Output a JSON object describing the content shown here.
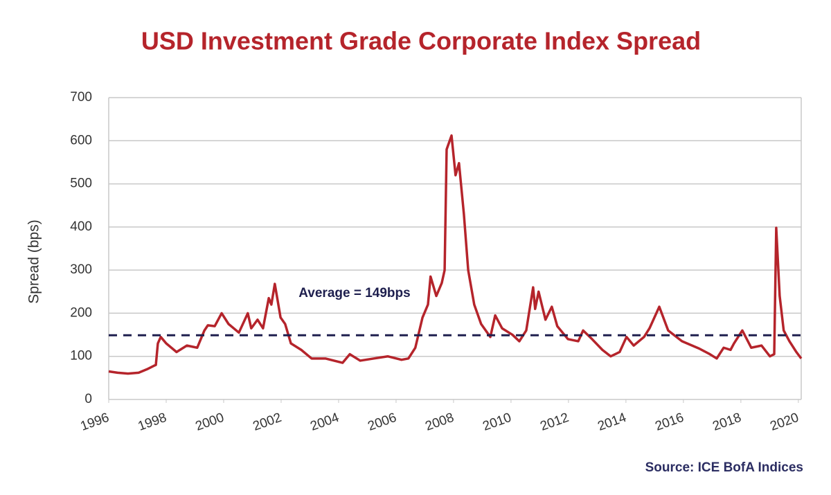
{
  "chart_data": {
    "type": "line",
    "title": "USD Investment Grade Corporate Index Spread",
    "y_label": "Spread (bps)",
    "source": "Source: ICE BofA Indices",
    "color": "#b5242b",
    "x": [
      1996.0,
      1996.31,
      1996.67,
      1997.04,
      1997.33,
      1997.57,
      1997.64,
      1997.71,
      1997.81,
      1998.0,
      1998.36,
      1998.72,
      1999.08,
      1999.33,
      1999.45,
      1999.69,
      1999.93,
      2000.17,
      2000.53,
      2000.84,
      2000.96,
      2001.18,
      2001.37,
      2001.57,
      2001.66,
      2001.78,
      2001.98,
      2002.14,
      2002.34,
      2002.7,
      2003.06,
      2003.54,
      2004.14,
      2004.39,
      2004.75,
      2005.23,
      2005.71,
      2006.19,
      2006.43,
      2006.67,
      2006.92,
      2007.11,
      2007.2,
      2007.4,
      2007.59,
      2007.69,
      2007.76,
      2007.93,
      2008.07,
      2008.19,
      2008.36,
      2008.51,
      2008.72,
      2008.96,
      2009.28,
      2009.45,
      2009.69,
      2010.05,
      2010.29,
      2010.53,
      2010.77,
      2010.84,
      2010.96,
      2011.2,
      2011.42,
      2011.61,
      2011.98,
      2012.34,
      2012.51,
      2012.82,
      2013.18,
      2013.47,
      2013.78,
      2014.02,
      2014.27,
      2014.63,
      2014.82,
      2015.16,
      2015.47,
      2015.95,
      2016.55,
      2016.92,
      2017.16,
      2017.4,
      2017.64,
      2017.76,
      2018.05,
      2018.36,
      2018.72,
      2019.01,
      2019.16,
      2019.23,
      2019.35,
      2019.49,
      2019.69,
      2019.93,
      2020.1
    ],
    "values": [
      65,
      62,
      60,
      62,
      70,
      78,
      80,
      130,
      145,
      130,
      110,
      125,
      120,
      160,
      172,
      170,
      200,
      175,
      155,
      200,
      165,
      185,
      165,
      235,
      220,
      268,
      190,
      175,
      130,
      115,
      95,
      95,
      85,
      105,
      90,
      95,
      100,
      92,
      95,
      120,
      190,
      220,
      285,
      240,
      270,
      300,
      580,
      612,
      520,
      548,
      430,
      300,
      220,
      175,
      145,
      195,
      165,
      150,
      135,
      160,
      260,
      210,
      250,
      185,
      215,
      170,
      140,
      135,
      160,
      140,
      115,
      100,
      110,
      145,
      125,
      145,
      165,
      215,
      160,
      135,
      118,
      105,
      95,
      120,
      115,
      130,
      160,
      120,
      125,
      100,
      105,
      398,
      240,
      160,
      135,
      110,
      95
    ],
    "average": {
      "value": 149,
      "label": "Average = 149bps"
    },
    "average_color": "#1e1f4e",
    "xlim": [
      1996,
      2020.1
    ],
    "xticks": [
      1996,
      1998,
      2000,
      2002,
      2004,
      2006,
      2008,
      2010,
      2012,
      2014,
      2016,
      2018,
      2020
    ],
    "ylim": [
      0,
      700
    ],
    "yticks": [
      0,
      100,
      200,
      300,
      400,
      500,
      600,
      700
    ],
    "grid": true
  }
}
